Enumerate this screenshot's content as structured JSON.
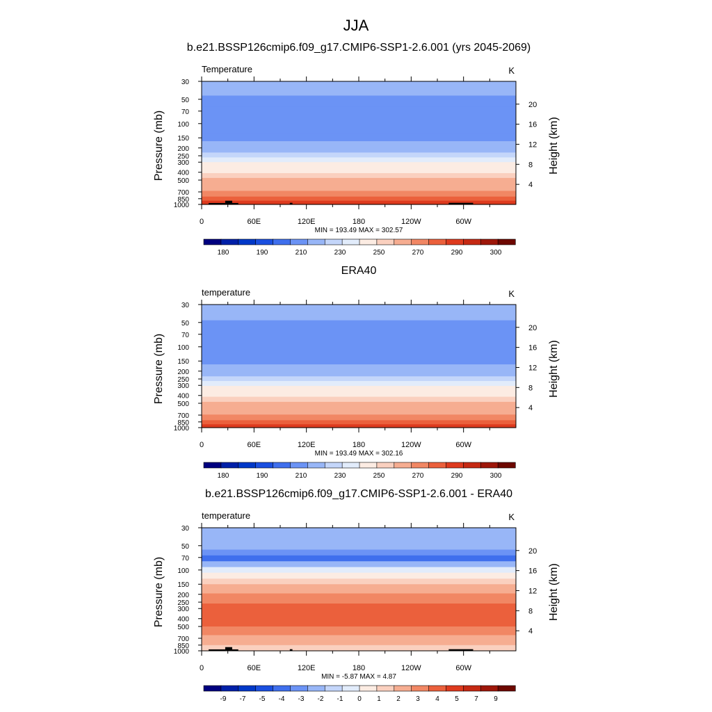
{
  "figure": {
    "title": "JJA",
    "colors": {
      "abs": [
        "#00007f",
        "#0020a8",
        "#0038c8",
        "#1a4fe0",
        "#3f6fed",
        "#6b93f5",
        "#98b6f7",
        "#c4d6fa",
        "#e2ecfb",
        "#fcece3",
        "#fad0bf",
        "#f6ad91",
        "#f18764",
        "#eb603c",
        "#de3a1e",
        "#c52913",
        "#9e170a",
        "#6d0800"
      ],
      "diff": [
        "#00007f",
        "#0020a8",
        "#0038c8",
        "#1a4fe0",
        "#3f6fed",
        "#6b93f5",
        "#98b6f7",
        "#c4d6fa",
        "#e2ecfb",
        "#fcece3",
        "#fad0bf",
        "#f6ad91",
        "#f18764",
        "#eb603c",
        "#de3a1e",
        "#c52913",
        "#9e170a",
        "#6d0800"
      ]
    }
  },
  "chart_data": [
    {
      "type": "heatmap",
      "title": "b.e21.BSSP126cmip6.f09_g17.CMIP6-SSP1-2.6.001 (yrs 2045-2069)",
      "var_label": "Temperature",
      "units": "K",
      "ylabel": "Pressure (mb)",
      "y2label": "Height (km)",
      "stats": "MIN = 193.49  MAX = 302.57",
      "min": 193.49,
      "max": 302.57,
      "x_ticks": [
        "0",
        "60E",
        "120E",
        "180",
        "120W",
        "60W"
      ],
      "xlim": [
        0,
        360
      ],
      "y_ticks": [
        "30",
        "50",
        "70",
        "100",
        "150",
        "200",
        "250",
        "300",
        "400",
        "500",
        "700",
        "850",
        "1000"
      ],
      "y_tick_values": [
        30,
        50,
        70,
        100,
        150,
        200,
        250,
        300,
        400,
        500,
        700,
        850,
        1000
      ],
      "ylim": [
        1000,
        30
      ],
      "y2_ticks": [
        "20",
        "16",
        "12",
        "8",
        "4"
      ],
      "y2_tick_values": [
        20,
        16,
        12,
        8,
        4
      ],
      "colorbar_labels": [
        "180",
        "190",
        "210",
        "230",
        "250",
        "270",
        "290",
        "300"
      ],
      "colorbar_values": [
        175,
        180,
        185,
        190,
        200,
        210,
        220,
        230,
        240,
        250,
        260,
        270,
        280,
        285,
        290,
        295,
        300,
        305
      ],
      "bands": [
        {
          "p_top": 30,
          "p_bot": 45,
          "value": 222
        },
        {
          "p_top": 45,
          "p_bot": 62,
          "value": 216
        },
        {
          "p_top": 62,
          "p_bot": 130,
          "value": 210
        },
        {
          "p_top": 130,
          "p_bot": 165,
          "value": 215
        },
        {
          "p_top": 165,
          "p_bot": 195,
          "value": 222
        },
        {
          "p_top": 195,
          "p_bot": 228,
          "value": 228
        },
        {
          "p_top": 228,
          "p_bot": 262,
          "value": 235
        },
        {
          "p_top": 262,
          "p_bot": 300,
          "value": 245
        },
        {
          "p_top": 300,
          "p_bot": 345,
          "value": 252
        },
        {
          "p_top": 345,
          "p_bot": 410,
          "value": 258
        },
        {
          "p_top": 410,
          "p_bot": 470,
          "value": 265
        },
        {
          "p_top": 470,
          "p_bot": 550,
          "value": 272
        },
        {
          "p_top": 550,
          "p_bot": 680,
          "value": 278
        },
        {
          "p_top": 680,
          "p_bot": 800,
          "value": 283
        },
        {
          "p_top": 800,
          "p_bot": 900,
          "value": 288
        },
        {
          "p_top": 900,
          "p_bot": 1000,
          "value": 293
        }
      ],
      "topography": [
        {
          "lon0": 8,
          "lon1": 42,
          "p": 960
        },
        {
          "lon0": 27,
          "lon1": 35,
          "p": 900
        },
        {
          "lon0": 101,
          "lon1": 104,
          "p": 955
        },
        {
          "lon0": 283,
          "lon1": 311,
          "p": 955
        }
      ]
    },
    {
      "type": "heatmap",
      "title": "ERA40",
      "var_label": "temperature",
      "units": "K",
      "ylabel": "Pressure (mb)",
      "y2label": "Height (km)",
      "stats": "MIN = 193.49  MAX = 302.16",
      "min": 193.49,
      "max": 302.16,
      "x_ticks": [
        "0",
        "60E",
        "120E",
        "180",
        "120W",
        "60W"
      ],
      "xlim": [
        0,
        360
      ],
      "y_ticks": [
        "30",
        "50",
        "70",
        "100",
        "150",
        "200",
        "250",
        "300",
        "400",
        "500",
        "700",
        "850",
        "1000"
      ],
      "y_tick_values": [
        30,
        50,
        70,
        100,
        150,
        200,
        250,
        300,
        400,
        500,
        700,
        850,
        1000
      ],
      "ylim": [
        1000,
        30
      ],
      "y2_ticks": [
        "20",
        "16",
        "12",
        "8",
        "4"
      ],
      "y2_tick_values": [
        20,
        16,
        12,
        8,
        4
      ],
      "colorbar_labels": [
        "180",
        "190",
        "210",
        "230",
        "250",
        "270",
        "290",
        "300"
      ],
      "colorbar_values": [
        175,
        180,
        185,
        190,
        200,
        210,
        220,
        230,
        240,
        250,
        260,
        270,
        280,
        285,
        290,
        295,
        300,
        305
      ],
      "bands": [
        {
          "p_top": 30,
          "p_bot": 47,
          "value": 222
        },
        {
          "p_top": 47,
          "p_bot": 80,
          "value": 216
        },
        {
          "p_top": 80,
          "p_bot": 125,
          "value": 210
        },
        {
          "p_top": 125,
          "p_bot": 165,
          "value": 215
        },
        {
          "p_top": 165,
          "p_bot": 200,
          "value": 222
        },
        {
          "p_top": 200,
          "p_bot": 232,
          "value": 228
        },
        {
          "p_top": 232,
          "p_bot": 265,
          "value": 235
        },
        {
          "p_top": 265,
          "p_bot": 305,
          "value": 245
        },
        {
          "p_top": 305,
          "p_bot": 350,
          "value": 252
        },
        {
          "p_top": 350,
          "p_bot": 415,
          "value": 258
        },
        {
          "p_top": 415,
          "p_bot": 480,
          "value": 265
        },
        {
          "p_top": 480,
          "p_bot": 560,
          "value": 272
        },
        {
          "p_top": 560,
          "p_bot": 690,
          "value": 278
        },
        {
          "p_top": 690,
          "p_bot": 810,
          "value": 283
        },
        {
          "p_top": 810,
          "p_bot": 910,
          "value": 288
        },
        {
          "p_top": 910,
          "p_bot": 1000,
          "value": 293
        }
      ],
      "topography": []
    },
    {
      "type": "heatmap",
      "title": "b.e21.BSSP126cmip6.f09_g17.CMIP6-SSP1-2.6.001 - ERA40",
      "var_label": "temperature",
      "units": "K",
      "ylabel": "Pressure (mb)",
      "y2label": "Height (km)",
      "stats": "MIN = -5.87  MAX =  4.87",
      "min": -5.87,
      "max": 4.87,
      "x_ticks": [
        "0",
        "60E",
        "120E",
        "180",
        "120W",
        "60W"
      ],
      "xlim": [
        0,
        360
      ],
      "y_ticks": [
        "30",
        "50",
        "70",
        "100",
        "150",
        "200",
        "250",
        "300",
        "400",
        "500",
        "700",
        "850",
        "1000"
      ],
      "y_tick_values": [
        30,
        50,
        70,
        100,
        150,
        200,
        250,
        300,
        400,
        500,
        700,
        850,
        1000
      ],
      "ylim": [
        1000,
        30
      ],
      "y2_ticks": [
        "20",
        "16",
        "12",
        "8",
        "4"
      ],
      "y2_tick_values": [
        20,
        16,
        12,
        8,
        4
      ],
      "colorbar_labels": [
        "-9",
        "-7",
        "-5",
        "-4",
        "-3",
        "-2",
        "-1",
        "0",
        "1",
        "2",
        "3",
        "4",
        "5",
        "7",
        "9"
      ],
      "colorbar_values": [
        -11,
        -9,
        -8,
        -7,
        -6,
        -5,
        -4,
        -3,
        -2,
        -1,
        0,
        1,
        2,
        3,
        4,
        5,
        6,
        8
      ],
      "bands": [
        {
          "p_top": 30,
          "p_bot": 56,
          "value": -4.0
        },
        {
          "p_top": 56,
          "p_bot": 66,
          "value": -4.5
        },
        {
          "p_top": 66,
          "p_bot": 78,
          "value": -5.5
        },
        {
          "p_top": 78,
          "p_bot": 92,
          "value": -3.5
        },
        {
          "p_top": 92,
          "p_bot": 108,
          "value": -2.0
        },
        {
          "p_top": 108,
          "p_bot": 128,
          "value": -0.5
        },
        {
          "p_top": 128,
          "p_bot": 150,
          "value": 0.5
        },
        {
          "p_top": 150,
          "p_bot": 195,
          "value": 1.5
        },
        {
          "p_top": 195,
          "p_bot": 260,
          "value": 2.5
        },
        {
          "p_top": 260,
          "p_bot": 500,
          "value": 3.5
        },
        {
          "p_top": 500,
          "p_bot": 640,
          "value": 2.5
        },
        {
          "p_top": 640,
          "p_bot": 850,
          "value": 1.5
        },
        {
          "p_top": 850,
          "p_bot": 1000,
          "value": 0.5
        }
      ],
      "topography": [
        {
          "lon0": 8,
          "lon1": 42,
          "p": 960
        },
        {
          "lon0": 27,
          "lon1": 35,
          "p": 900
        },
        {
          "lon0": 101,
          "lon1": 104,
          "p": 955
        },
        {
          "lon0": 283,
          "lon1": 311,
          "p": 955
        }
      ]
    }
  ]
}
